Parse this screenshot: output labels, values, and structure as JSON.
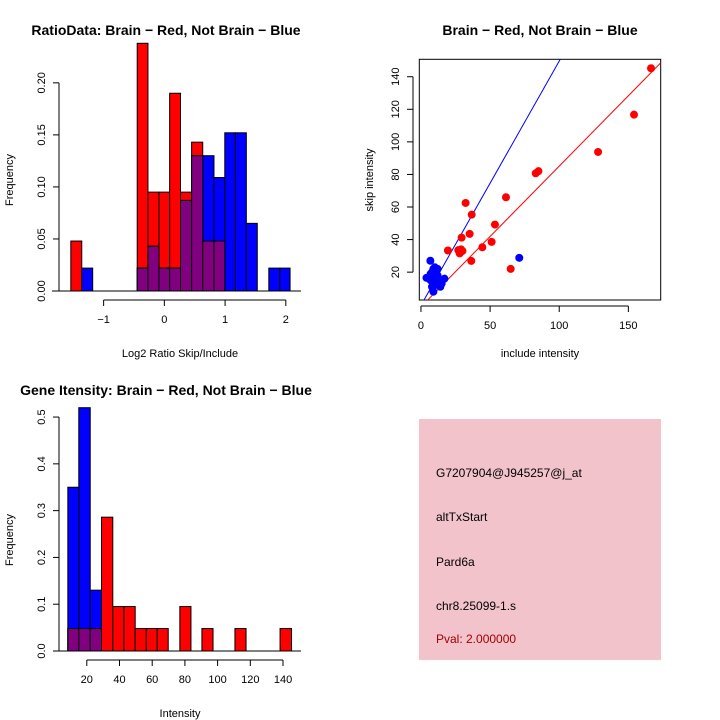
{
  "colors": {
    "red": "#ff0000",
    "blue": "#0000ff",
    "overlap": "#800080",
    "panel": "#f3c3cc",
    "pval": "#a00000"
  },
  "chart_data": [
    {
      "type": "bar",
      "title": "RatioData: Brain − Red, Not Brain − Blue",
      "xlabel": "Log2 Ratio Skip/Include",
      "ylabel": "Frequency",
      "xlim": [
        -1.85,
        2.25
      ],
      "ylim": [
        0,
        0.245
      ],
      "xticks": [
        -1,
        0,
        1,
        2
      ],
      "xtick_labels": [
        "−1",
        "0",
        "1",
        "2"
      ],
      "yticks": [
        0,
        0.05,
        0.1,
        0.15,
        0.2
      ],
      "ytick_labels": [
        "0.00",
        "0.05",
        "0.10",
        "0.15",
        "0.20"
      ],
      "series": [
        {
          "name": "Brain",
          "color": "red",
          "bins": [
            [
              -1.54,
              -1.36,
              0.048
            ],
            [
              -0.447,
              -0.27,
              0.238
            ],
            [
              -0.27,
              -0.09,
              0.095
            ],
            [
              -0.09,
              0.087,
              0.095
            ],
            [
              0.087,
              0.266,
              0.19
            ],
            [
              0.266,
              0.449,
              0.095
            ],
            [
              0.449,
              0.632,
              0.143
            ],
            [
              0.632,
              0.817,
              0.048
            ],
            [
              0.817,
              0.995,
              0.048
            ]
          ]
        },
        {
          "name": "Not Brain",
          "color": "blue",
          "bins": [
            [
              -1.36,
              -1.18,
              0.022
            ],
            [
              -0.447,
              -0.27,
              0.022
            ],
            [
              -0.27,
              -0.09,
              0.043
            ],
            [
              -0.09,
              0.087,
              0.022
            ],
            [
              0.087,
              0.266,
              0.022
            ],
            [
              0.266,
              0.449,
              0.087
            ],
            [
              0.449,
              0.632,
              0.13
            ],
            [
              0.632,
              0.817,
              0.13
            ],
            [
              0.817,
              0.995,
              0.109
            ],
            [
              0.995,
              1.17,
              0.152
            ],
            [
              1.17,
              1.35,
              0.152
            ],
            [
              1.35,
              1.53,
              0.065
            ],
            [
              1.72,
              1.9,
              0.022
            ],
            [
              1.9,
              2.07,
              0.022
            ]
          ]
        }
      ]
    },
    {
      "type": "scatter",
      "title": "Brain − Red, Not Brain − Blue",
      "xlabel": "include intensity",
      "ylabel": "skip intensity",
      "xlim": [
        -1.2,
        173.4
      ],
      "ylim": [
        2.9,
        150.7
      ],
      "xticks": [
        0,
        50,
        100,
        150
      ],
      "xtick_labels": [
        "0",
        "50",
        "100",
        "150"
      ],
      "yticks": [
        20,
        40,
        60,
        80,
        100,
        120,
        140
      ],
      "ytick_labels": [
        "20",
        "40",
        "60",
        "80",
        "100",
        "120",
        "140"
      ],
      "series": [
        {
          "name": "Brain",
          "color": "red",
          "fit": {
            "slope": 0.864,
            "intercept": -1.3
          },
          "points": [
            [
              166.4,
              145.2
            ],
            [
              154.1,
              116.7
            ],
            [
              128.1,
              93.8
            ],
            [
              83,
              80.7
            ],
            [
              85,
              82
            ],
            [
              61.5,
              66
            ],
            [
              32.3,
              62.5
            ],
            [
              36.7,
              55.3
            ],
            [
              53.5,
              49.2
            ],
            [
              35.2,
              43.5
            ],
            [
              29.4,
              41.2
            ],
            [
              51.1,
              38.6
            ],
            [
              44.4,
              35.3
            ],
            [
              19.5,
              33.3
            ],
            [
              27,
              33.5
            ],
            [
              29,
              34
            ],
            [
              30,
              33
            ],
            [
              28,
              31.5
            ],
            [
              36.4,
              26.9
            ],
            [
              64.9,
              22
            ]
          ]
        },
        {
          "name": "Not Brain",
          "color": "blue",
          "fit": {
            "slope": 1.5,
            "intercept": -0.4
          },
          "points": [
            [
              71.1,
              28.8
            ],
            [
              6.8,
              27
            ],
            [
              4,
              16.5
            ],
            [
              6,
              17
            ],
            [
              7,
              15
            ],
            [
              8,
              20
            ],
            [
              9,
              22
            ],
            [
              10,
              23
            ],
            [
              11,
              21
            ],
            [
              12,
              18
            ],
            [
              9,
              14
            ],
            [
              10,
              12
            ],
            [
              8,
              11
            ],
            [
              9,
              8
            ],
            [
              13,
              14
            ],
            [
              14,
              11
            ],
            [
              15,
              13
            ],
            [
              17,
              16
            ],
            [
              11,
              16
            ],
            [
              7,
              19
            ],
            [
              10,
              19
            ],
            [
              12,
              22
            ],
            [
              8,
              17
            ]
          ]
        }
      ]
    },
    {
      "type": "bar",
      "title": "Gene Itensity: Brain − Red, Not Brain − Blue",
      "xlabel": "Intensity",
      "ylabel": "Frequency",
      "xlim": [
        3,
        151
      ],
      "ylim": [
        0,
        0.545
      ],
      "xticks": [
        20,
        40,
        60,
        80,
        100,
        120,
        140
      ],
      "xtick_labels": [
        "20",
        "40",
        "60",
        "80",
        "100",
        "120",
        "140"
      ],
      "yticks": [
        0,
        0.1,
        0.2,
        0.3,
        0.4,
        0.5
      ],
      "ytick_labels": [
        "0.0",
        "0.1",
        "0.2",
        "0.3",
        "0.4",
        "0.5"
      ],
      "series": [
        {
          "name": "Brain",
          "color": "red",
          "bins": [
            [
              8.4,
              15.1,
              0.048
            ],
            [
              15.1,
              22.1,
              0.048
            ],
            [
              22.1,
              29.0,
              0.048
            ],
            [
              29.0,
              35.9,
              0.286
            ],
            [
              35.9,
              42.7,
              0.095
            ],
            [
              42.7,
              49.6,
              0.095
            ],
            [
              49.6,
              56.4,
              0.048
            ],
            [
              56.4,
              63.1,
              0.048
            ],
            [
              63.1,
              69.8,
              0.048
            ],
            [
              76.9,
              83.7,
              0.095
            ],
            [
              90.4,
              97.2,
              0.048
            ],
            [
              110.6,
              117.4,
              0.048
            ],
            [
              138.2,
              145.2,
              0.048
            ]
          ]
        },
        {
          "name": "Not Brain",
          "color": "blue",
          "bins": [
            [
              8.4,
              15.1,
              0.35
            ],
            [
              15.1,
              22.1,
              0.52
            ],
            [
              22.1,
              29.0,
              0.13
            ]
          ]
        }
      ]
    }
  ],
  "info_panel": {
    "probe_id": "G7207904@J945257@j_at",
    "event_type": "altTxStart",
    "gene": "Pard6a",
    "location": "chr8.25099-1.s",
    "pval": "Pval: 2.000000"
  }
}
